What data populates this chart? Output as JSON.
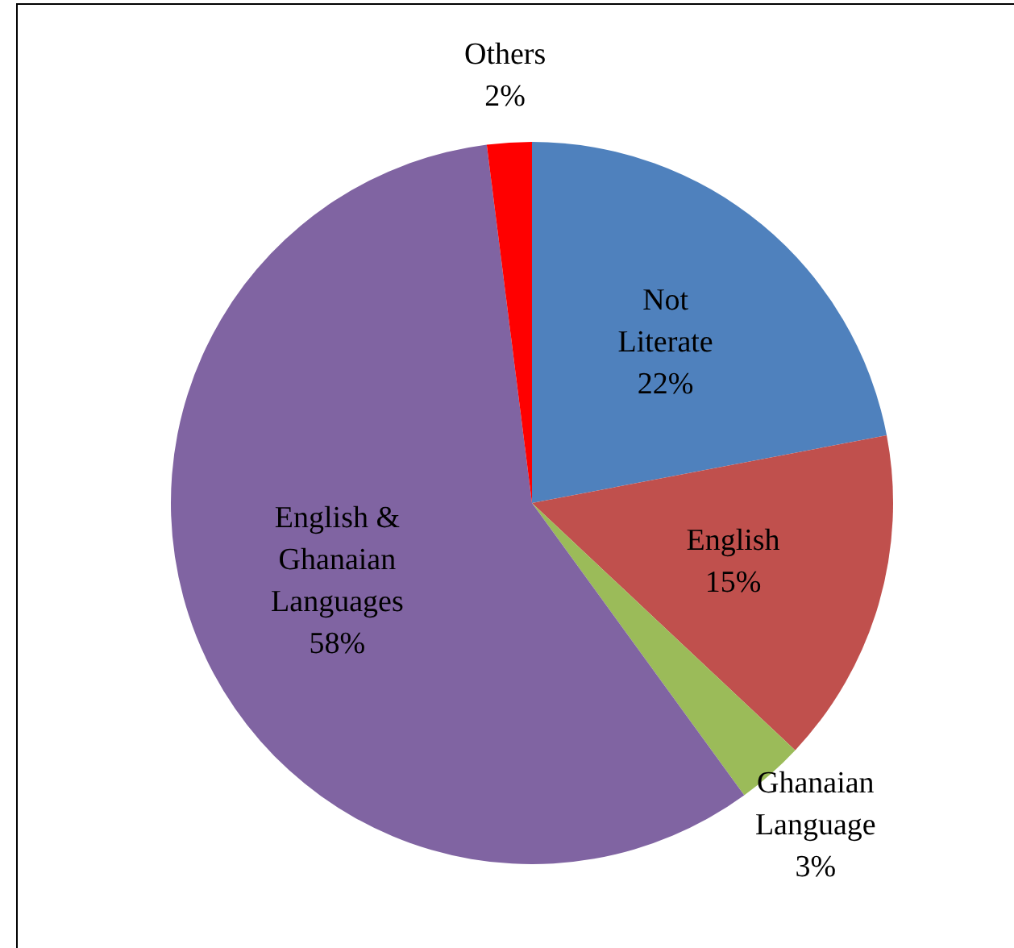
{
  "chart_data": {
    "type": "pie",
    "categories": [
      "Not Literate",
      "English",
      "Ghanaian Language",
      "English & Ghanaian Languages",
      "Others"
    ],
    "values": [
      22,
      15,
      3,
      58,
      2
    ],
    "colors": [
      "#4f81bd",
      "#c0504d",
      "#9bbb59",
      "#8064a2",
      "#ff0000"
    ],
    "value_labels": [
      "22%",
      "15%",
      "3%",
      "58%",
      "2%"
    ]
  }
}
